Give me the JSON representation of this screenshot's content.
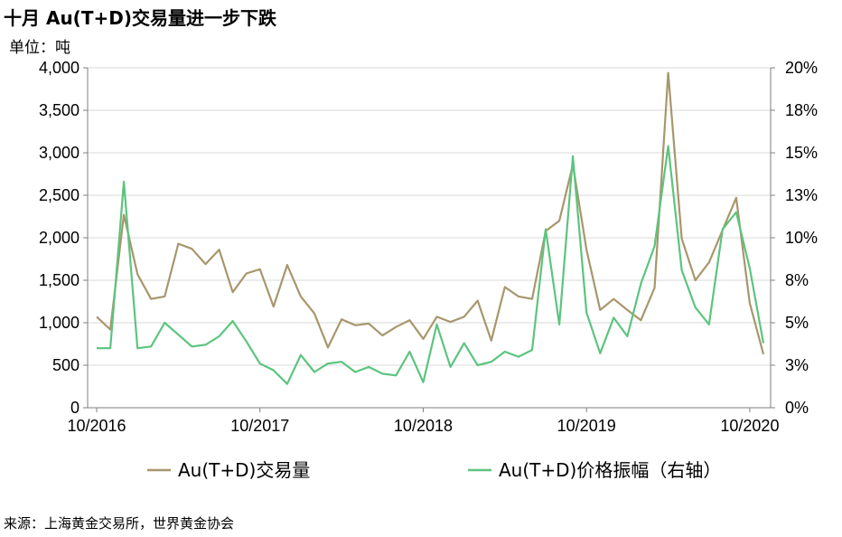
{
  "title": "十月 Au(T+D)交易量进一步下跌",
  "unit_label": "单位：吨",
  "source": "来源：上海黄金交易所，世界黄金协会",
  "colors": {
    "volume": "#a8966c",
    "amplitude": "#5cc47f",
    "grid": "#d9d9d9",
    "axis": "#7f7f7f"
  },
  "chart_data": {
    "type": "line",
    "title": "十月 Au(T+D)交易量进一步下跌",
    "ylabel": "单位：吨",
    "x_tick_labels": [
      "10/2016",
      "10/2017",
      "10/2018",
      "10/2019",
      "10/2020"
    ],
    "x_tick_indices": [
      0,
      12,
      24,
      36,
      48
    ],
    "y_left": {
      "lim": [
        0,
        4000
      ],
      "ticks": [
        0,
        500,
        1000,
        1500,
        2000,
        2500,
        3000,
        3500,
        4000
      ],
      "tick_labels": [
        "0",
        "500",
        "1,000",
        "1,500",
        "2,000",
        "2,500",
        "3,000",
        "3,500",
        "4,000"
      ]
    },
    "y_right": {
      "lim": [
        0,
        20
      ],
      "ticks": [
        0,
        2.5,
        5,
        7.5,
        10,
        12.5,
        15,
        17.5,
        20
      ],
      "tick_labels": [
        "0%",
        "3%",
        "5%",
        "8%",
        "10%",
        "13%",
        "15%",
        "18%",
        "20%"
      ]
    },
    "grid": "horizontal",
    "legend_position": "bottom",
    "series": [
      {
        "name": "Au(T+D)交易量",
        "axis": "left",
        "values": [
          1070,
          920,
          2270,
          1570,
          1280,
          1310,
          1930,
          1870,
          1690,
          1860,
          1360,
          1580,
          1630,
          1190,
          1680,
          1310,
          1110,
          710,
          1040,
          970,
          990,
          850,
          950,
          1030,
          810,
          1070,
          1010,
          1070,
          1260,
          790,
          1420,
          1310,
          1280,
          2080,
          2200,
          2860,
          1860,
          1150,
          1280,
          1150,
          1030,
          1410,
          3940,
          1990,
          1500,
          1710,
          2090,
          2470,
          1230,
          630
        ]
      },
      {
        "name": "Au(T+D)价格振幅（右轴）",
        "axis": "right",
        "values": [
          3.5,
          3.5,
          13.3,
          3.5,
          3.6,
          5.0,
          4.3,
          3.6,
          3.7,
          4.2,
          5.1,
          3.9,
          2.6,
          2.2,
          1.4,
          3.1,
          2.1,
          2.6,
          2.7,
          2.1,
          2.4,
          2.0,
          1.9,
          3.3,
          1.5,
          4.9,
          2.4,
          3.8,
          2.5,
          2.7,
          3.3,
          3.0,
          3.4,
          10.5,
          4.9,
          14.8,
          5.6,
          3.2,
          5.3,
          4.2,
          7.3,
          9.5,
          15.4,
          8.1,
          5.9,
          4.9,
          10.5,
          11.5,
          8.2,
          3.8
        ]
      }
    ]
  }
}
